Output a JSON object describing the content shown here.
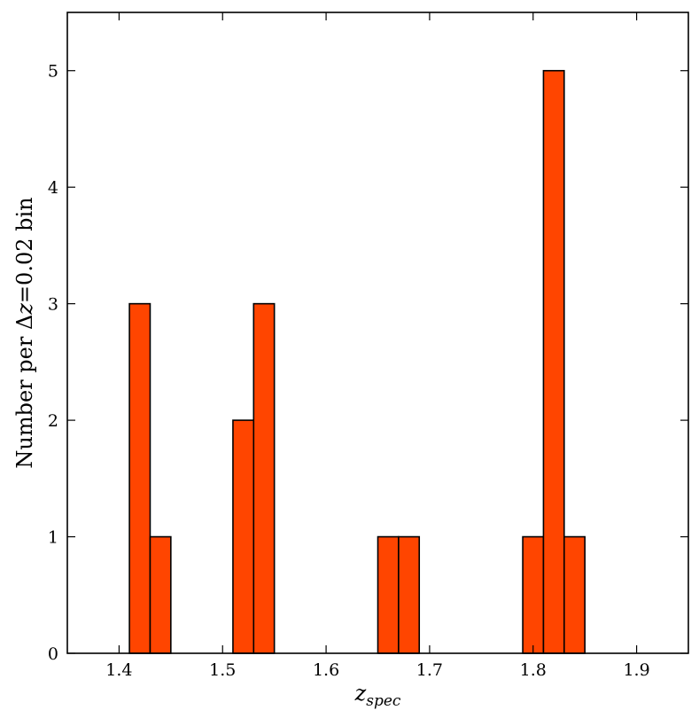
{
  "chart_data": {
    "type": "bar",
    "bar_color": "#ff4500",
    "edge_color": "#000000",
    "xlabel_main": "z",
    "xlabel_sub": "spec",
    "ylabel_prefix": "Number per Δ",
    "ylabel_var": "z",
    "ylabel_suffix": "=0.02 bin",
    "xlim": [
      1.35,
      1.95
    ],
    "ylim": [
      0,
      5.5
    ],
    "xticks": [
      1.4,
      1.5,
      1.6,
      1.7,
      1.8,
      1.9
    ],
    "xtick_labels": [
      "1.4",
      "1.5",
      "1.6",
      "1.7",
      "1.8",
      "1.9"
    ],
    "yticks": [
      0,
      1,
      2,
      3,
      4,
      5
    ],
    "ytick_labels": [
      "0",
      "1",
      "2",
      "3",
      "4",
      "5"
    ],
    "bin_width": 0.02,
    "bins": [
      {
        "start": 1.41,
        "value": 3
      },
      {
        "start": 1.43,
        "value": 1
      },
      {
        "start": 1.51,
        "value": 2
      },
      {
        "start": 1.53,
        "value": 3
      },
      {
        "start": 1.65,
        "value": 1
      },
      {
        "start": 1.67,
        "value": 1
      },
      {
        "start": 1.79,
        "value": 1
      },
      {
        "start": 1.81,
        "value": 5
      },
      {
        "start": 1.83,
        "value": 1
      }
    ]
  }
}
